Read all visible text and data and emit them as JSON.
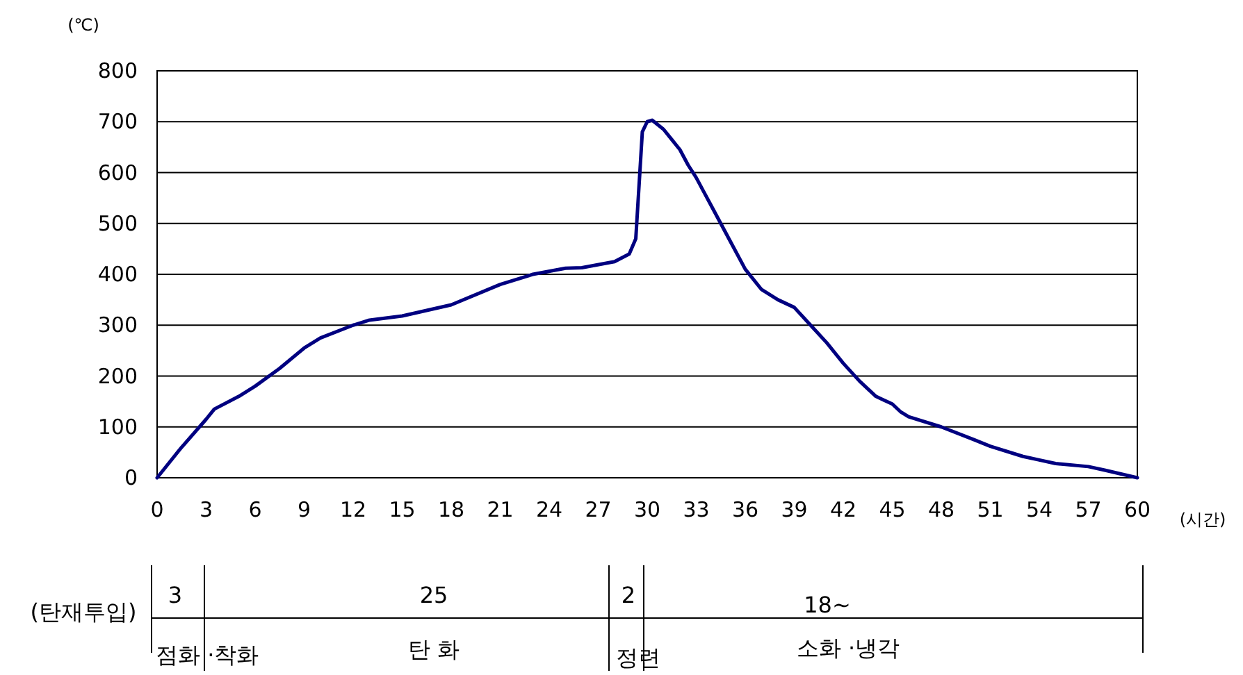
{
  "chart_data": {
    "type": "line",
    "ylabel": "(℃)",
    "xlabel": "(시간)",
    "color": "#000080",
    "grid": "y",
    "marker": "none",
    "line_style": "solid",
    "xlim": [
      0,
      60
    ],
    "ylim": [
      0,
      800
    ],
    "xticks": [
      0,
      3,
      6,
      9,
      12,
      15,
      18,
      21,
      24,
      27,
      30,
      33,
      36,
      39,
      42,
      45,
      48,
      51,
      54,
      57,
      60
    ],
    "yticks": [
      0,
      100,
      200,
      300,
      400,
      500,
      600,
      700,
      800
    ],
    "x": [
      0,
      1.5,
      3,
      3.5,
      5,
      6,
      7.5,
      9,
      10,
      12,
      13,
      15,
      18,
      21,
      23,
      25,
      26,
      28,
      28.9,
      29.3,
      29.7,
      30,
      30.3,
      31,
      31.5,
      32,
      32.5,
      33,
      34,
      35,
      36,
      37,
      38,
      39,
      40,
      41,
      42,
      43,
      44,
      45,
      45.5,
      46,
      48,
      50,
      51,
      53,
      54,
      55,
      57,
      58,
      60
    ],
    "values": [
      0,
      60,
      115,
      135,
      160,
      180,
      215,
      255,
      275,
      300,
      310,
      318,
      340,
      380,
      400,
      412,
      413,
      425,
      440,
      470,
      680,
      700,
      703,
      685,
      665,
      645,
      615,
      590,
      530,
      470,
      410,
      370,
      350,
      335,
      300,
      265,
      225,
      190,
      160,
      145,
      130,
      120,
      100,
      75,
      62,
      42,
      35,
      28,
      22,
      15,
      0
    ],
    "annotations": [
      "(탄재투입)",
      "3",
      "25",
      "2",
      "18~",
      "점화 ·착화",
      "탄 화",
      "정련",
      "소화 ·냉각"
    ]
  }
}
